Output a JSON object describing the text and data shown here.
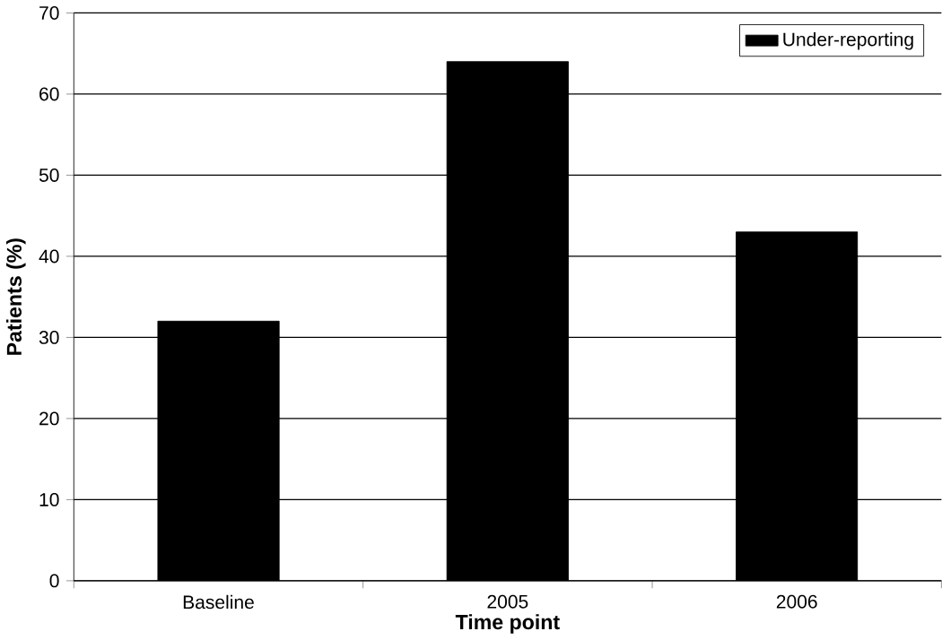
{
  "chart_data": {
    "type": "bar",
    "xlabel": "Time point",
    "ylabel": "Patients (%)",
    "categories": [
      "Baseline",
      "2005",
      "2006"
    ],
    "series": [
      {
        "name": "Under-reporting",
        "color": "#000000",
        "values": [
          32,
          64,
          43
        ]
      }
    ],
    "ylim": [
      0,
      70
    ],
    "yticks": [
      0,
      10,
      20,
      30,
      40,
      50,
      60,
      70
    ],
    "grid": "y",
    "legend": "top right"
  }
}
